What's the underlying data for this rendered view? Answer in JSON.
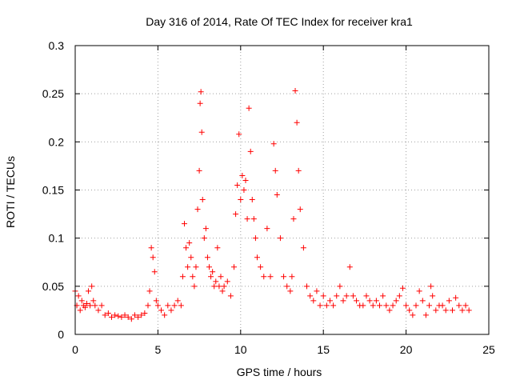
{
  "chart_data": {
    "type": "scatter",
    "title": "Day 316 of 2014, Rate Of TEC Index for receiver kra1",
    "xlabel": "GPS time / hours",
    "ylabel": "ROTI / TECUs",
    "xlim": [
      0,
      25
    ],
    "ylim": [
      0,
      0.3
    ],
    "x_ticks": [
      0,
      5,
      10,
      15,
      20,
      25
    ],
    "x_tick_labels": [
      "0",
      "5",
      "10",
      "15",
      "20",
      "25"
    ],
    "y_ticks": [
      0,
      0.05,
      0.1,
      0.15,
      0.2,
      0.25,
      0.3
    ],
    "y_tick_labels": [
      "0",
      "0.05",
      "0.1",
      "0.15",
      "0.2",
      "0.25",
      "0.3"
    ],
    "grid": true,
    "marker": "+",
    "color": "#ff0000",
    "series": [
      {
        "name": "ROTI",
        "x": [
          0.0,
          0.1,
          0.2,
          0.3,
          0.4,
          0.5,
          0.6,
          0.7,
          0.8,
          0.9,
          1.0,
          1.1,
          1.2,
          1.4,
          1.6,
          1.8,
          2.0,
          2.2,
          2.4,
          2.6,
          2.8,
          3.0,
          3.2,
          3.4,
          3.6,
          3.8,
          4.0,
          4.2,
          4.4,
          4.5,
          4.6,
          4.7,
          4.8,
          4.9,
          5.0,
          5.2,
          5.4,
          5.6,
          5.8,
          6.0,
          6.2,
          6.4,
          6.5,
          6.6,
          6.7,
          6.8,
          6.9,
          7.0,
          7.1,
          7.2,
          7.3,
          7.4,
          7.5,
          7.55,
          7.6,
          7.65,
          7.7,
          7.8,
          7.9,
          8.0,
          8.1,
          8.2,
          8.3,
          8.4,
          8.5,
          8.6,
          8.7,
          8.8,
          8.9,
          9.0,
          9.2,
          9.4,
          9.6,
          9.7,
          9.8,
          9.9,
          10.0,
          10.1,
          10.2,
          10.3,
          10.4,
          10.5,
          10.6,
          10.7,
          10.8,
          10.9,
          11.0,
          11.2,
          11.4,
          11.6,
          11.8,
          12.0,
          12.1,
          12.2,
          12.4,
          12.6,
          12.8,
          13.0,
          13.1,
          13.2,
          13.3,
          13.4,
          13.5,
          13.6,
          13.8,
          14.0,
          14.2,
          14.4,
          14.6,
          14.8,
          15.0,
          15.2,
          15.4,
          15.6,
          15.8,
          16.0,
          16.2,
          16.4,
          16.6,
          16.8,
          17.0,
          17.2,
          17.4,
          17.6,
          17.8,
          18.0,
          18.2,
          18.4,
          18.6,
          18.8,
          19.0,
          19.2,
          19.4,
          19.6,
          19.8,
          20.0,
          20.2,
          20.4,
          20.6,
          20.8,
          21.0,
          21.2,
          21.4,
          21.5,
          21.6,
          21.8,
          22.0,
          22.2,
          22.4,
          22.6,
          22.8,
          23.0,
          23.2,
          23.4,
          23.6,
          23.8
        ],
        "y": [
          0.045,
          0.03,
          0.04,
          0.025,
          0.035,
          0.03,
          0.028,
          0.032,
          0.045,
          0.03,
          0.05,
          0.035,
          0.03,
          0.025,
          0.03,
          0.02,
          0.022,
          0.018,
          0.02,
          0.019,
          0.018,
          0.02,
          0.018,
          0.016,
          0.02,
          0.018,
          0.02,
          0.022,
          0.03,
          0.045,
          0.09,
          0.08,
          0.065,
          0.035,
          0.03,
          0.025,
          0.02,
          0.03,
          0.025,
          0.03,
          0.035,
          0.03,
          0.06,
          0.115,
          0.09,
          0.07,
          0.095,
          0.08,
          0.06,
          0.05,
          0.07,
          0.13,
          0.17,
          0.24,
          0.252,
          0.21,
          0.14,
          0.1,
          0.11,
          0.08,
          0.07,
          0.06,
          0.065,
          0.05,
          0.055,
          0.09,
          0.05,
          0.06,
          0.045,
          0.05,
          0.055,
          0.04,
          0.07,
          0.125,
          0.155,
          0.208,
          0.14,
          0.165,
          0.15,
          0.16,
          0.12,
          0.235,
          0.19,
          0.14,
          0.12,
          0.1,
          0.08,
          0.07,
          0.06,
          0.11,
          0.06,
          0.198,
          0.17,
          0.145,
          0.1,
          0.06,
          0.05,
          0.045,
          0.06,
          0.12,
          0.253,
          0.22,
          0.17,
          0.13,
          0.09,
          0.05,
          0.04,
          0.035,
          0.045,
          0.03,
          0.04,
          0.03,
          0.035,
          0.03,
          0.04,
          0.05,
          0.035,
          0.04,
          0.07,
          0.04,
          0.035,
          0.03,
          0.03,
          0.04,
          0.035,
          0.03,
          0.035,
          0.03,
          0.04,
          0.03,
          0.025,
          0.03,
          0.035,
          0.04,
          0.048,
          0.03,
          0.025,
          0.02,
          0.03,
          0.045,
          0.035,
          0.02,
          0.03,
          0.05,
          0.04,
          0.025,
          0.03,
          0.03,
          0.025,
          0.035,
          0.025,
          0.038,
          0.03,
          0.025,
          0.03,
          0.025
        ]
      }
    ]
  }
}
